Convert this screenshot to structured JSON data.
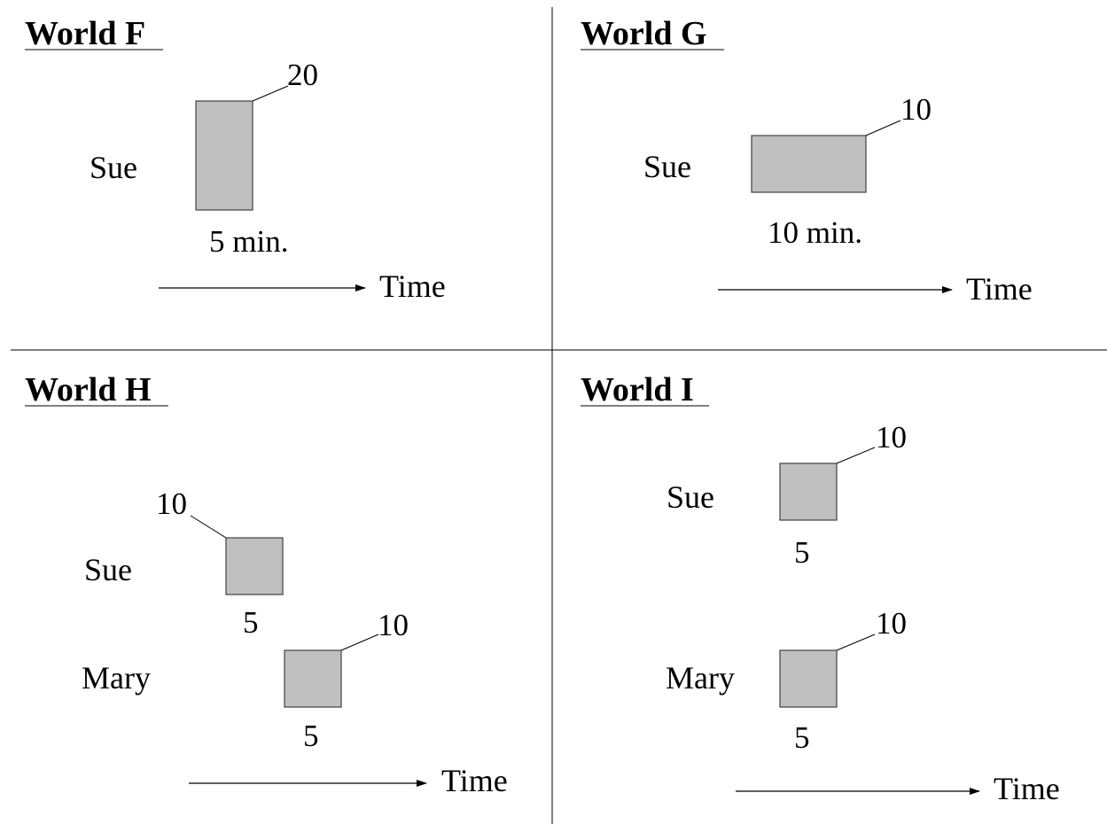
{
  "colors": {
    "box_fill": "#c0c0c0",
    "box_stroke": "#404040",
    "ink": "#000000",
    "background": "#ffffff"
  },
  "time_label": "Time",
  "worlds": {
    "F": {
      "title": "World F",
      "sue": {
        "name": "Sue",
        "width_label": "5 min.",
        "height_label": "20"
      }
    },
    "G": {
      "title": "World G",
      "sue": {
        "name": "Sue",
        "width_label": "10 min.",
        "height_label": "10"
      }
    },
    "H": {
      "title": "World H",
      "sue": {
        "name": "Sue",
        "width_label": "5",
        "height_label": "10"
      },
      "mary": {
        "name": "Mary",
        "width_label": "5",
        "height_label": "10"
      }
    },
    "I": {
      "title": "World I",
      "sue": {
        "name": "Sue",
        "width_label": "5",
        "height_label": "10"
      },
      "mary": {
        "name": "Mary",
        "width_label": "5",
        "height_label": "10"
      }
    }
  }
}
